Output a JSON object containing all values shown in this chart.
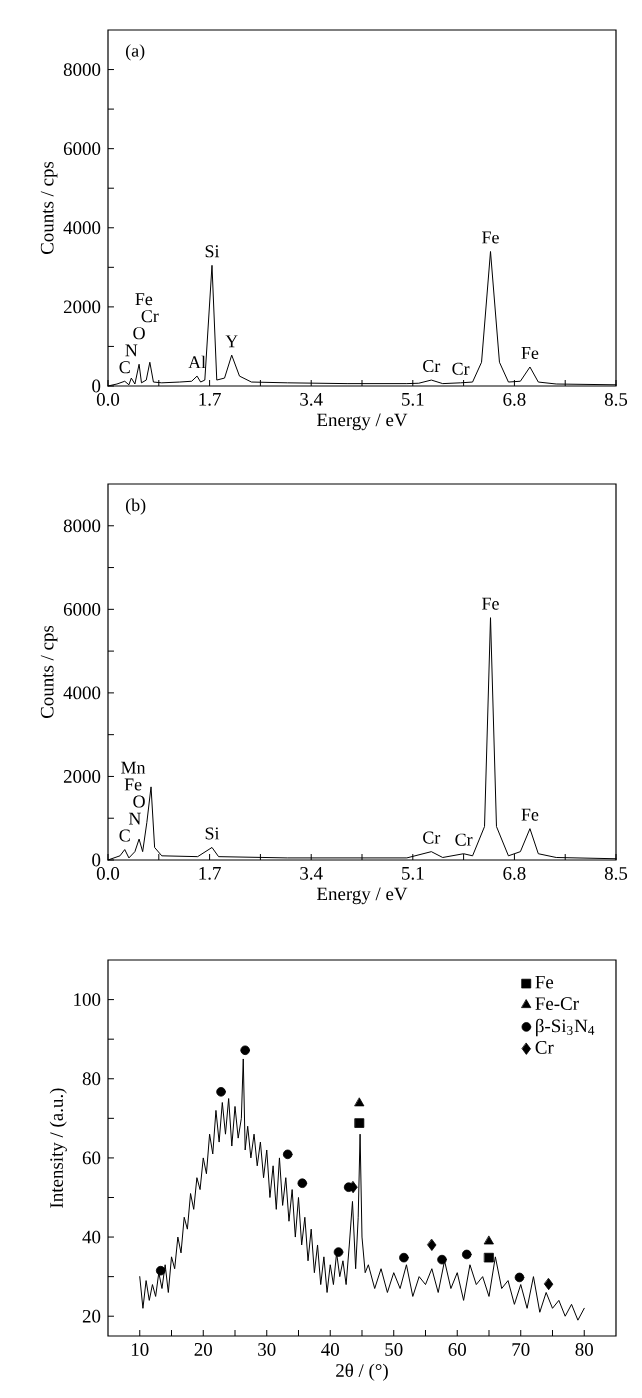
{
  "chart_data": [
    {
      "type": "line",
      "xlabel": "Energy / eV",
      "ylabel": "Counts / cps",
      "xlim": [
        0,
        8.5
      ],
      "ylim": [
        0,
        9000
      ],
      "xticks": [
        {
          "value": 0,
          "label": "0.0"
        },
        {
          "value": 0.85,
          "label": null
        },
        1.7,
        {
          "value": 2.55,
          "label": null
        },
        3.4,
        {
          "value": 4.25,
          "label": null
        },
        5.1,
        {
          "value": 5.95,
          "label": null
        },
        6.8,
        {
          "value": 7.65,
          "label": null
        },
        8.5
      ],
      "yticks": [
        0,
        {
          "value": 1000,
          "label": null
        },
        2000,
        {
          "value": 3000,
          "label": null
        },
        4000,
        {
          "value": 5000,
          "label": null
        },
        6000,
        {
          "value": 7000,
          "label": null
        },
        8000
      ],
      "series": [
        {
          "color": "#000000",
          "x": [
            0,
            0.15,
            0.28,
            0.35,
            0.39,
            0.45,
            0.52,
            0.56,
            0.64,
            0.7,
            0.76,
            0.9,
            1.2,
            1.4,
            1.49,
            1.55,
            1.62,
            1.74,
            1.82,
            1.95,
            2.07,
            2.2,
            2.4,
            3,
            4,
            5,
            5.2,
            5.41,
            5.6,
            5.9,
            6.1,
            6.25,
            6.4,
            6.55,
            6.7,
            6.9,
            7.06,
            7.2,
            7.5,
            8.5
          ],
          "values": [
            0,
            50,
            120,
            30,
            200,
            50,
            550,
            80,
            150,
            600,
            100,
            80,
            100,
            120,
            250,
            100,
            150,
            3050,
            150,
            200,
            780,
            250,
            100,
            80,
            60,
            60,
            70,
            150,
            60,
            80,
            100,
            600,
            3400,
            600,
            100,
            120,
            480,
            100,
            50,
            30
          ]
        }
      ],
      "annotations": [
        "(a)",
        {
          "text": "C",
          "x": 0.28,
          "y": 120
        },
        {
          "text": "N",
          "x": 0.39,
          "y": 200
        },
        {
          "text": "O",
          "x": 0.52,
          "y": 550
        },
        {
          "text": "Cr",
          "x": 0.7,
          "y": 600
        },
        "Fe",
        {
          "text": "Al",
          "x": 1.49,
          "y": 250
        },
        {
          "text": "Si",
          "x": 1.74,
          "y": 3050
        },
        {
          "text": "Y",
          "x": 2.07,
          "y": 780
        },
        {
          "text": "Cr",
          "x": 5.41,
          "y": 150
        },
        {
          "text": "Cr",
          "x": 5.9,
          "y": 80
        },
        {
          "text": "Fe",
          "x": 6.4,
          "y": 3400
        },
        {
          "text": "Fe",
          "x": 7.06,
          "y": 480
        }
      ]
    },
    {
      "type": "line",
      "xlabel": "Energy / eV",
      "ylabel": "Counts / cps",
      "xlim": [
        0,
        8.5
      ],
      "ylim": [
        0,
        9000
      ],
      "xticks": [
        {
          "value": 0,
          "label": "0.0"
        },
        {
          "value": 0.85,
          "label": null
        },
        1.7,
        {
          "value": 2.55,
          "label": null
        },
        3.4,
        {
          "value": 4.25,
          "label": null
        },
        5.1,
        {
          "value": 5.95,
          "label": null
        },
        6.8,
        {
          "value": 7.65,
          "label": null
        },
        8.5
      ],
      "yticks": [
        0,
        {
          "value": 1000,
          "label": null
        },
        2000,
        {
          "value": 3000,
          "label": null
        },
        4000,
        {
          "value": 5000,
          "label": null
        },
        6000,
        {
          "value": 7000,
          "label": null
        },
        8000
      ],
      "series": [
        {
          "color": "#000000",
          "x": [
            0,
            0.2,
            0.28,
            0.35,
            0.45,
            0.52,
            0.58,
            0.65,
            0.72,
            0.78,
            0.9,
            1.5,
            1.74,
            1.85,
            3,
            5,
            5.41,
            5.6,
            5.95,
            6.1,
            6.3,
            6.4,
            6.5,
            6.7,
            6.9,
            7.06,
            7.2,
            7.5,
            8.5
          ],
          "values": [
            0,
            100,
            250,
            50,
            200,
            500,
            200,
            900,
            1750,
            300,
            100,
            80,
            300,
            80,
            50,
            50,
            200,
            60,
            150,
            100,
            800,
            5800,
            800,
            100,
            200,
            750,
            150,
            60,
            30
          ]
        }
      ],
      "annotations": [
        "(b)",
        {
          "text": "C",
          "x": 0.28,
          "y": 250
        },
        {
          "text": "N",
          "x": 0.45,
          "y": 200
        },
        {
          "text": "O",
          "x": 0.52,
          "y": 500
        },
        "Fe",
        "Mn",
        {
          "text": "Si",
          "x": 1.74,
          "y": 300
        },
        {
          "text": "Cr",
          "x": 5.41,
          "y": 200
        },
        {
          "text": "Cr",
          "x": 5.95,
          "y": 150
        },
        {
          "text": "Fe",
          "x": 6.4,
          "y": 5800
        },
        {
          "text": "Fe",
          "x": 7.06,
          "y": 750
        }
      ]
    },
    {
      "type": "line",
      "xlabel": "2θ / (°)",
      "ylabel": "Intensity / (a.u.)",
      "xlim": [
        5,
        85
      ],
      "ylim": [
        15,
        110
      ],
      "legend": "top right",
      "xticks": [
        10,
        {
          "value": 15,
          "label": null
        },
        20,
        {
          "value": 25,
          "label": null
        },
        30,
        {
          "value": 35,
          "label": null
        },
        40,
        {
          "value": 45,
          "label": null
        },
        50,
        {
          "value": 55,
          "label": null
        },
        60,
        {
          "value": 65,
          "label": null
        },
        70,
        {
          "value": 75,
          "label": null
        },
        80
      ],
      "yticks": [
        20,
        {
          "value": 30,
          "label": null
        },
        40,
        {
          "value": 50,
          "label": null
        },
        60,
        {
          "value": 70,
          "label": null
        },
        80,
        {
          "value": 90,
          "label": null
        },
        100
      ],
      "series": [
        {
          "color": "#000000",
          "x": [
            10,
            10.5,
            11,
            11.5,
            12,
            12.5,
            13,
            13.5,
            14,
            14.5,
            15,
            15.5,
            16,
            16.5,
            17,
            17.5,
            18,
            18.5,
            19,
            19.5,
            20,
            20.5,
            21,
            21.5,
            22,
            22.5,
            23,
            23.5,
            24,
            24.5,
            25,
            25.5,
            26,
            26.3,
            26.6,
            27,
            27.5,
            28,
            28.5,
            29,
            29.5,
            30,
            30.5,
            31,
            31.5,
            32,
            32.5,
            33,
            33.5,
            34,
            34.5,
            35,
            35.5,
            36,
            36.5,
            37,
            37.5,
            38,
            38.5,
            39,
            39.5,
            40,
            40.5,
            41,
            41.5,
            42,
            42.5,
            43,
            43.5,
            44,
            44.4,
            44.7,
            45,
            45.5,
            46,
            47,
            48,
            49,
            50,
            51,
            52,
            53,
            54,
            55,
            56,
            57,
            58,
            59,
            60,
            61,
            62,
            63,
            64,
            65,
            66,
            67,
            68,
            69,
            70,
            71,
            72,
            73,
            74,
            75,
            76,
            77,
            78,
            79,
            80
          ],
          "values": [
            30,
            22,
            29,
            24,
            28,
            25,
            31,
            27,
            33,
            26,
            35,
            32,
            40,
            36,
            45,
            42,
            51,
            47,
            55,
            52,
            60,
            56,
            66,
            61,
            72,
            64,
            74,
            66,
            75,
            63,
            73,
            65,
            70,
            85,
            62,
            68,
            60,
            66,
            58,
            64,
            55,
            62,
            50,
            58,
            47,
            60,
            48,
            55,
            44,
            52,
            40,
            50,
            38,
            45,
            34,
            42,
            31,
            38,
            28,
            35,
            26,
            33,
            28,
            36,
            30,
            34,
            28,
            38,
            49,
            32,
            45,
            66,
            40,
            31,
            33,
            27,
            32,
            26,
            31,
            27,
            33,
            25,
            30,
            28,
            32,
            26,
            34,
            27,
            31,
            24,
            33,
            28,
            30,
            25,
            35,
            27,
            29,
            23,
            28,
            22,
            30,
            21,
            26,
            22,
            24,
            20,
            23,
            19,
            22
          ]
        },
        {
          "name": "Fe",
          "type": "scatter",
          "marker": "square",
          "color": "#000000",
          "x": [
            44.6,
            65.0
          ],
          "values": [
            68.8,
            34.8
          ]
        },
        {
          "name": "Fe-Cr",
          "type": "scatter",
          "marker": "triangle",
          "color": "#000000",
          "x": [
            44.6,
            65.0
          ],
          "values": [
            73.8,
            38.9
          ]
        },
        {
          "name": "β-Si$_{3}$N$_{4}$",
          "type": "scatter",
          "marker": "circle",
          "color": "#000000",
          "x": [
            13.3,
            22.8,
            26.6,
            33.3,
            35.6,
            41.3,
            42.9,
            51.6,
            57.6,
            61.5,
            69.8
          ],
          "values": [
            31.5,
            76.7,
            87.2,
            60.9,
            53.6,
            36.2,
            52.6,
            34.8,
            34.3,
            35.6,
            29.8
          ]
        },
        {
          "name": "Cr",
          "type": "scatter",
          "marker": "diamond",
          "color": "#000000",
          "x": [
            43.6,
            56.0,
            74.4
          ],
          "values": [
            52.6,
            38.0,
            28.1
          ]
        }
      ]
    }
  ]
}
